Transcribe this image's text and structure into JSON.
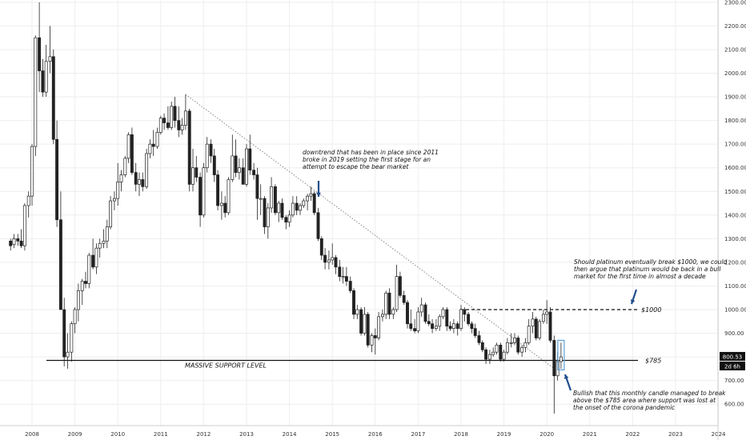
{
  "chart_data": {
    "type": "candlestick",
    "interval": "monthly",
    "x_ticks": [
      "2008",
      "2009",
      "2010",
      "2011",
      "2012",
      "2013",
      "2014",
      "2015",
      "2016",
      "2017",
      "2018",
      "2019",
      "2020",
      "2021",
      "2022",
      "2023",
      "2024"
    ],
    "y_ticks": [
      "600.00",
      "700.00",
      "800.00",
      "900.00",
      "1000.00",
      "1100.00",
      "1200.00",
      "1300.00",
      "1400.00",
      "1500.00",
      "1600.00",
      "1700.00",
      "1800.00",
      "1900.00",
      "2000.00",
      "2100.00",
      "2200.00",
      "2300.00"
    ],
    "ylim": [
      540,
      2300
    ],
    "ohlc": [
      {
        "t": 2007.5,
        "o": 1290,
        "h": 1300,
        "l": 1250,
        "c": 1270
      },
      {
        "t": 2007.58,
        "o": 1275,
        "h": 1320,
        "l": 1260,
        "c": 1300
      },
      {
        "t": 2007.67,
        "o": 1300,
        "h": 1320,
        "l": 1270,
        "c": 1290
      },
      {
        "t": 2007.75,
        "o": 1290,
        "h": 1340,
        "l": 1260,
        "c": 1270
      },
      {
        "t": 2007.83,
        "o": 1270,
        "h": 1450,
        "l": 1250,
        "c": 1440
      },
      {
        "t": 2007.92,
        "o": 1440,
        "h": 1500,
        "l": 1390,
        "c": 1480
      },
      {
        "t": 2008.0,
        "o": 1480,
        "h": 1700,
        "l": 1440,
        "c": 1690
      },
      {
        "t": 2008.08,
        "o": 1690,
        "h": 2160,
        "l": 1650,
        "c": 2150
      },
      {
        "t": 2008.17,
        "o": 2150,
        "h": 2300,
        "l": 1920,
        "c": 2010
      },
      {
        "t": 2008.25,
        "o": 2010,
        "h": 2060,
        "l": 1900,
        "c": 1920
      },
      {
        "t": 2008.33,
        "o": 1920,
        "h": 2120,
        "l": 1900,
        "c": 2050
      },
      {
        "t": 2008.42,
        "o": 2050,
        "h": 2200,
        "l": 2000,
        "c": 2070
      },
      {
        "t": 2008.5,
        "o": 2070,
        "h": 2100,
        "l": 1700,
        "c": 1720
      },
      {
        "t": 2008.58,
        "o": 1720,
        "h": 1800,
        "l": 1350,
        "c": 1380
      },
      {
        "t": 2008.67,
        "o": 1380,
        "h": 1500,
        "l": 1000,
        "c": 1000
      },
      {
        "t": 2008.75,
        "o": 1000,
        "h": 1050,
        "l": 760,
        "c": 800
      },
      {
        "t": 2008.83,
        "o": 800,
        "h": 900,
        "l": 750,
        "c": 820
      },
      {
        "t": 2008.92,
        "o": 820,
        "h": 950,
        "l": 780,
        "c": 940
      },
      {
        "t": 2009.0,
        "o": 940,
        "h": 1010,
        "l": 900,
        "c": 1000
      },
      {
        "t": 2009.08,
        "o": 1000,
        "h": 1110,
        "l": 950,
        "c": 1080
      },
      {
        "t": 2009.17,
        "o": 1080,
        "h": 1130,
        "l": 1020,
        "c": 1120
      },
      {
        "t": 2009.25,
        "o": 1120,
        "h": 1160,
        "l": 1090,
        "c": 1110
      },
      {
        "t": 2009.33,
        "o": 1110,
        "h": 1240,
        "l": 1090,
        "c": 1230
      },
      {
        "t": 2009.42,
        "o": 1230,
        "h": 1300,
        "l": 1170,
        "c": 1180
      },
      {
        "t": 2009.5,
        "o": 1180,
        "h": 1280,
        "l": 1150,
        "c": 1260
      },
      {
        "t": 2009.58,
        "o": 1260,
        "h": 1300,
        "l": 1220,
        "c": 1280
      },
      {
        "t": 2009.67,
        "o": 1280,
        "h": 1340,
        "l": 1260,
        "c": 1290
      },
      {
        "t": 2009.75,
        "o": 1290,
        "h": 1380,
        "l": 1260,
        "c": 1350
      },
      {
        "t": 2009.83,
        "o": 1350,
        "h": 1480,
        "l": 1340,
        "c": 1460
      },
      {
        "t": 2009.92,
        "o": 1460,
        "h": 1500,
        "l": 1420,
        "c": 1470
      },
      {
        "t": 2010.0,
        "o": 1470,
        "h": 1620,
        "l": 1440,
        "c": 1540
      },
      {
        "t": 2010.08,
        "o": 1540,
        "h": 1590,
        "l": 1500,
        "c": 1570
      },
      {
        "t": 2010.17,
        "o": 1570,
        "h": 1650,
        "l": 1560,
        "c": 1640
      },
      {
        "t": 2010.25,
        "o": 1640,
        "h": 1750,
        "l": 1620,
        "c": 1740
      },
      {
        "t": 2010.33,
        "o": 1740,
        "h": 1770,
        "l": 1570,
        "c": 1580
      },
      {
        "t": 2010.42,
        "o": 1580,
        "h": 1620,
        "l": 1500,
        "c": 1530
      },
      {
        "t": 2010.5,
        "o": 1530,
        "h": 1580,
        "l": 1480,
        "c": 1550
      },
      {
        "t": 2010.58,
        "o": 1550,
        "h": 1580,
        "l": 1500,
        "c": 1520
      },
      {
        "t": 2010.67,
        "o": 1520,
        "h": 1680,
        "l": 1510,
        "c": 1660
      },
      {
        "t": 2010.75,
        "o": 1660,
        "h": 1720,
        "l": 1640,
        "c": 1700
      },
      {
        "t": 2010.83,
        "o": 1700,
        "h": 1760,
        "l": 1650,
        "c": 1690
      },
      {
        "t": 2010.92,
        "o": 1690,
        "h": 1770,
        "l": 1680,
        "c": 1750
      },
      {
        "t": 2011.0,
        "o": 1750,
        "h": 1820,
        "l": 1740,
        "c": 1810
      },
      {
        "t": 2011.08,
        "o": 1810,
        "h": 1830,
        "l": 1760,
        "c": 1790
      },
      {
        "t": 2011.17,
        "o": 1790,
        "h": 1860,
        "l": 1760,
        "c": 1770
      },
      {
        "t": 2011.25,
        "o": 1770,
        "h": 1880,
        "l": 1760,
        "c": 1860
      },
      {
        "t": 2011.33,
        "o": 1860,
        "h": 1900,
        "l": 1770,
        "c": 1800
      },
      {
        "t": 2011.42,
        "o": 1800,
        "h": 1860,
        "l": 1730,
        "c": 1760
      },
      {
        "t": 2011.5,
        "o": 1760,
        "h": 1810,
        "l": 1740,
        "c": 1780
      },
      {
        "t": 2011.58,
        "o": 1780,
        "h": 1910,
        "l": 1760,
        "c": 1840
      },
      {
        "t": 2011.67,
        "o": 1840,
        "h": 1850,
        "l": 1500,
        "c": 1530
      },
      {
        "t": 2011.75,
        "o": 1530,
        "h": 1680,
        "l": 1500,
        "c": 1600
      },
      {
        "t": 2011.83,
        "o": 1600,
        "h": 1650,
        "l": 1540,
        "c": 1560
      },
      {
        "t": 2011.92,
        "o": 1560,
        "h": 1580,
        "l": 1350,
        "c": 1400
      },
      {
        "t": 2012.0,
        "o": 1400,
        "h": 1620,
        "l": 1390,
        "c": 1600
      },
      {
        "t": 2012.08,
        "o": 1600,
        "h": 1730,
        "l": 1580,
        "c": 1700
      },
      {
        "t": 2012.17,
        "o": 1700,
        "h": 1720,
        "l": 1620,
        "c": 1650
      },
      {
        "t": 2012.25,
        "o": 1650,
        "h": 1680,
        "l": 1540,
        "c": 1570
      },
      {
        "t": 2012.33,
        "o": 1570,
        "h": 1590,
        "l": 1420,
        "c": 1440
      },
      {
        "t": 2012.42,
        "o": 1440,
        "h": 1500,
        "l": 1380,
        "c": 1450
      },
      {
        "t": 2012.5,
        "o": 1450,
        "h": 1480,
        "l": 1390,
        "c": 1410
      },
      {
        "t": 2012.58,
        "o": 1410,
        "h": 1560,
        "l": 1400,
        "c": 1550
      },
      {
        "t": 2012.67,
        "o": 1550,
        "h": 1740,
        "l": 1540,
        "c": 1650
      },
      {
        "t": 2012.75,
        "o": 1650,
        "h": 1720,
        "l": 1560,
        "c": 1580
      },
      {
        "t": 2012.83,
        "o": 1580,
        "h": 1640,
        "l": 1550,
        "c": 1600
      },
      {
        "t": 2012.92,
        "o": 1600,
        "h": 1640,
        "l": 1530,
        "c": 1530
      },
      {
        "t": 2013.0,
        "o": 1530,
        "h": 1700,
        "l": 1520,
        "c": 1680
      },
      {
        "t": 2013.08,
        "o": 1680,
        "h": 1740,
        "l": 1570,
        "c": 1590
      },
      {
        "t": 2013.17,
        "o": 1590,
        "h": 1620,
        "l": 1550,
        "c": 1570
      },
      {
        "t": 2013.25,
        "o": 1570,
        "h": 1600,
        "l": 1380,
        "c": 1470
      },
      {
        "t": 2013.33,
        "o": 1470,
        "h": 1530,
        "l": 1400,
        "c": 1470
      },
      {
        "t": 2013.42,
        "o": 1470,
        "h": 1480,
        "l": 1320,
        "c": 1350
      },
      {
        "t": 2013.5,
        "o": 1350,
        "h": 1450,
        "l": 1300,
        "c": 1430
      },
      {
        "t": 2013.58,
        "o": 1430,
        "h": 1560,
        "l": 1410,
        "c": 1520
      },
      {
        "t": 2013.67,
        "o": 1520,
        "h": 1530,
        "l": 1400,
        "c": 1410
      },
      {
        "t": 2013.75,
        "o": 1410,
        "h": 1460,
        "l": 1370,
        "c": 1450
      },
      {
        "t": 2013.83,
        "o": 1450,
        "h": 1470,
        "l": 1380,
        "c": 1390
      },
      {
        "t": 2013.92,
        "o": 1390,
        "h": 1400,
        "l": 1340,
        "c": 1370
      },
      {
        "t": 2014.0,
        "o": 1370,
        "h": 1420,
        "l": 1350,
        "c": 1400
      },
      {
        "t": 2014.08,
        "o": 1400,
        "h": 1480,
        "l": 1390,
        "c": 1450
      },
      {
        "t": 2014.17,
        "o": 1450,
        "h": 1480,
        "l": 1400,
        "c": 1420
      },
      {
        "t": 2014.25,
        "o": 1420,
        "h": 1450,
        "l": 1400,
        "c": 1440
      },
      {
        "t": 2014.33,
        "o": 1440,
        "h": 1470,
        "l": 1430,
        "c": 1460
      },
      {
        "t": 2014.42,
        "o": 1460,
        "h": 1490,
        "l": 1420,
        "c": 1480
      },
      {
        "t": 2014.5,
        "o": 1480,
        "h": 1520,
        "l": 1460,
        "c": 1490
      },
      {
        "t": 2014.58,
        "o": 1490,
        "h": 1500,
        "l": 1400,
        "c": 1410
      },
      {
        "t": 2014.67,
        "o": 1410,
        "h": 1430,
        "l": 1290,
        "c": 1300
      },
      {
        "t": 2014.75,
        "o": 1300,
        "h": 1310,
        "l": 1210,
        "c": 1230
      },
      {
        "t": 2014.83,
        "o": 1230,
        "h": 1260,
        "l": 1170,
        "c": 1200
      },
      {
        "t": 2014.92,
        "o": 1200,
        "h": 1250,
        "l": 1170,
        "c": 1210
      },
      {
        "t": 2015.0,
        "o": 1210,
        "h": 1280,
        "l": 1190,
        "c": 1220
      },
      {
        "t": 2015.08,
        "o": 1220,
        "h": 1230,
        "l": 1150,
        "c": 1180
      },
      {
        "t": 2015.17,
        "o": 1180,
        "h": 1210,
        "l": 1120,
        "c": 1140
      },
      {
        "t": 2015.25,
        "o": 1140,
        "h": 1180,
        "l": 1110,
        "c": 1140
      },
      {
        "t": 2015.33,
        "o": 1140,
        "h": 1180,
        "l": 1100,
        "c": 1120
      },
      {
        "t": 2015.42,
        "o": 1120,
        "h": 1140,
        "l": 1070,
        "c": 1080
      },
      {
        "t": 2015.5,
        "o": 1080,
        "h": 1090,
        "l": 960,
        "c": 980
      },
      {
        "t": 2015.58,
        "o": 980,
        "h": 1020,
        "l": 960,
        "c": 1000
      },
      {
        "t": 2015.67,
        "o": 1000,
        "h": 1010,
        "l": 890,
        "c": 900
      },
      {
        "t": 2015.75,
        "o": 900,
        "h": 1010,
        "l": 890,
        "c": 980
      },
      {
        "t": 2015.83,
        "o": 980,
        "h": 990,
        "l": 840,
        "c": 850
      },
      {
        "t": 2015.92,
        "o": 850,
        "h": 900,
        "l": 820,
        "c": 890
      },
      {
        "t": 2016.0,
        "o": 890,
        "h": 920,
        "l": 810,
        "c": 880
      },
      {
        "t": 2016.08,
        "o": 880,
        "h": 990,
        "l": 870,
        "c": 970
      },
      {
        "t": 2016.17,
        "o": 970,
        "h": 1000,
        "l": 950,
        "c": 980
      },
      {
        "t": 2016.25,
        "o": 980,
        "h": 1080,
        "l": 960,
        "c": 1070
      },
      {
        "t": 2016.33,
        "o": 1070,
        "h": 1090,
        "l": 960,
        "c": 980
      },
      {
        "t": 2016.42,
        "o": 980,
        "h": 1010,
        "l": 960,
        "c": 1000
      },
      {
        "t": 2016.5,
        "o": 1000,
        "h": 1190,
        "l": 990,
        "c": 1140
      },
      {
        "t": 2016.58,
        "o": 1140,
        "h": 1160,
        "l": 1050,
        "c": 1060
      },
      {
        "t": 2016.67,
        "o": 1060,
        "h": 1080,
        "l": 1020,
        "c": 1030
      },
      {
        "t": 2016.75,
        "o": 1030,
        "h": 1040,
        "l": 920,
        "c": 940
      },
      {
        "t": 2016.83,
        "o": 940,
        "h": 1000,
        "l": 910,
        "c": 920
      },
      {
        "t": 2016.92,
        "o": 920,
        "h": 960,
        "l": 900,
        "c": 910
      },
      {
        "t": 2017.0,
        "o": 910,
        "h": 1010,
        "l": 900,
        "c": 990
      },
      {
        "t": 2017.08,
        "o": 990,
        "h": 1050,
        "l": 970,
        "c": 1020
      },
      {
        "t": 2017.17,
        "o": 1020,
        "h": 1030,
        "l": 940,
        "c": 950
      },
      {
        "t": 2017.25,
        "o": 950,
        "h": 980,
        "l": 930,
        "c": 940
      },
      {
        "t": 2017.33,
        "o": 940,
        "h": 960,
        "l": 900,
        "c": 920
      },
      {
        "t": 2017.42,
        "o": 920,
        "h": 960,
        "l": 910,
        "c": 930
      },
      {
        "t": 2017.5,
        "o": 930,
        "h": 980,
        "l": 910,
        "c": 970
      },
      {
        "t": 2017.58,
        "o": 970,
        "h": 1010,
        "l": 960,
        "c": 1000
      },
      {
        "t": 2017.67,
        "o": 1000,
        "h": 1010,
        "l": 910,
        "c": 930
      },
      {
        "t": 2017.75,
        "o": 930,
        "h": 950,
        "l": 910,
        "c": 920
      },
      {
        "t": 2017.83,
        "o": 920,
        "h": 960,
        "l": 900,
        "c": 940
      },
      {
        "t": 2017.92,
        "o": 940,
        "h": 950,
        "l": 890,
        "c": 920
      },
      {
        "t": 2018.0,
        "o": 920,
        "h": 1020,
        "l": 910,
        "c": 1000
      },
      {
        "t": 2018.08,
        "o": 1000,
        "h": 1010,
        "l": 950,
        "c": 980
      },
      {
        "t": 2018.17,
        "o": 980,
        "h": 990,
        "l": 930,
        "c": 940
      },
      {
        "t": 2018.25,
        "o": 940,
        "h": 950,
        "l": 900,
        "c": 920
      },
      {
        "t": 2018.33,
        "o": 920,
        "h": 940,
        "l": 880,
        "c": 890
      },
      {
        "t": 2018.42,
        "o": 890,
        "h": 910,
        "l": 850,
        "c": 860
      },
      {
        "t": 2018.5,
        "o": 860,
        "h": 870,
        "l": 820,
        "c": 830
      },
      {
        "t": 2018.58,
        "o": 830,
        "h": 840,
        "l": 770,
        "c": 790
      },
      {
        "t": 2018.67,
        "o": 790,
        "h": 830,
        "l": 770,
        "c": 810
      },
      {
        "t": 2018.75,
        "o": 810,
        "h": 840,
        "l": 800,
        "c": 820
      },
      {
        "t": 2018.83,
        "o": 820,
        "h": 860,
        "l": 810,
        "c": 850
      },
      {
        "t": 2018.92,
        "o": 850,
        "h": 860,
        "l": 780,
        "c": 790
      },
      {
        "t": 2019.0,
        "o": 790,
        "h": 830,
        "l": 780,
        "c": 820
      },
      {
        "t": 2019.08,
        "o": 820,
        "h": 880,
        "l": 810,
        "c": 860
      },
      {
        "t": 2019.17,
        "o": 860,
        "h": 900,
        "l": 840,
        "c": 860
      },
      {
        "t": 2019.25,
        "o": 860,
        "h": 900,
        "l": 850,
        "c": 880
      },
      {
        "t": 2019.33,
        "o": 880,
        "h": 890,
        "l": 810,
        "c": 820
      },
      {
        "t": 2019.42,
        "o": 820,
        "h": 850,
        "l": 800,
        "c": 840
      },
      {
        "t": 2019.5,
        "o": 840,
        "h": 880,
        "l": 820,
        "c": 860
      },
      {
        "t": 2019.58,
        "o": 860,
        "h": 960,
        "l": 850,
        "c": 930
      },
      {
        "t": 2019.67,
        "o": 930,
        "h": 990,
        "l": 900,
        "c": 960
      },
      {
        "t": 2019.75,
        "o": 960,
        "h": 970,
        "l": 870,
        "c": 880
      },
      {
        "t": 2019.83,
        "o": 880,
        "h": 960,
        "l": 870,
        "c": 950
      },
      {
        "t": 2019.92,
        "o": 950,
        "h": 1000,
        "l": 940,
        "c": 980
      },
      {
        "t": 2020.0,
        "o": 980,
        "h": 1040,
        "l": 940,
        "c": 990
      },
      {
        "t": 2020.08,
        "o": 990,
        "h": 1010,
        "l": 860,
        "c": 870
      },
      {
        "t": 2020.17,
        "o": 870,
        "h": 890,
        "l": 560,
        "c": 720
      },
      {
        "t": 2020.25,
        "o": 720,
        "h": 820,
        "l": 700,
        "c": 780
      },
      {
        "t": 2020.33,
        "o": 780,
        "h": 860,
        "l": 750,
        "c": 800
      }
    ],
    "current_price": "800.53",
    "current_interval_label": "2d 6h",
    "support_level": {
      "value": 785,
      "label": "$785",
      "caption": "MASSIVE SUPPORT LEVEL"
    },
    "resistance_level": {
      "value": 1000,
      "label": "$1000"
    },
    "trendline": {
      "start": {
        "t": 2011.58,
        "v": 1910
      },
      "end": {
        "t": 2020.25,
        "v": 740
      }
    },
    "annotations": [
      {
        "id": "downtrend-note",
        "lines": [
          "downtrend that has been in place since 2011",
          "broke in 2019 setting the first stage for an",
          "attempt to escape the bear market"
        ]
      },
      {
        "id": "breakout-note",
        "lines": [
          "Should platinum eventually break $1000, we could",
          "then argue that platinum would be back in a bull",
          "market for the first time in almost a decade"
        ]
      },
      {
        "id": "bullish-note",
        "lines": [
          "Bullish that this monthly candle managed to break",
          "above the $785 area where support was lost at",
          "the onset of the corona pandemic"
        ]
      }
    ],
    "colors": {
      "candle": "#222222",
      "arrow": "#1f4e8c",
      "highlight": "#5aa0d8",
      "grid": "#eeeeee"
    },
    "grid": true
  }
}
